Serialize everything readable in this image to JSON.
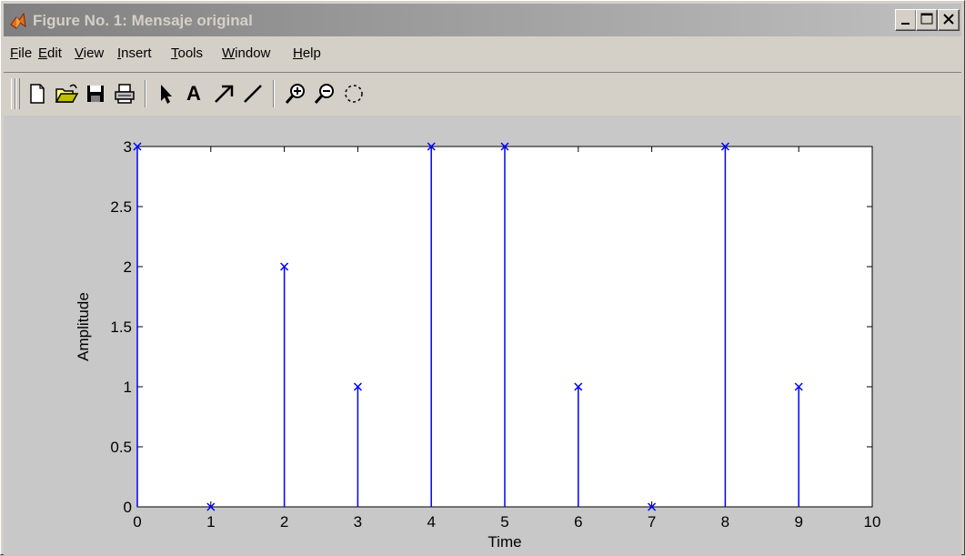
{
  "window": {
    "title": "Figure No. 1: Mensaje original",
    "controls": [
      "minimize",
      "maximize",
      "close"
    ]
  },
  "menubar": {
    "items": [
      {
        "label": "File",
        "underline": "F"
      },
      {
        "label": "Edit",
        "underline": "E"
      },
      {
        "label": "View",
        "underline": "V"
      },
      {
        "label": "Insert",
        "underline": "I"
      },
      {
        "label": "Tools",
        "underline": "T"
      },
      {
        "label": "Window",
        "underline": "W"
      },
      {
        "label": "Help",
        "underline": "H"
      }
    ]
  },
  "toolbar": {
    "tools": [
      {
        "name": "new-figure-icon"
      },
      {
        "name": "open-file-icon"
      },
      {
        "name": "save-icon"
      },
      {
        "name": "print-icon"
      },
      {
        "name": "edit-plot-arrow-icon"
      },
      {
        "name": "insert-text-icon",
        "text": "A"
      },
      {
        "name": "insert-arrow-icon"
      },
      {
        "name": "insert-line-icon"
      },
      {
        "name": "zoom-in-icon"
      },
      {
        "name": "zoom-out-icon"
      },
      {
        "name": "rotate-3d-icon"
      }
    ]
  },
  "colors": {
    "series": "#0000ff",
    "figure_bg": "#c8c8c8",
    "axes_bg": "#ffffff"
  },
  "chart_data": {
    "type": "stem",
    "marker": "x",
    "xlabel": "Time",
    "ylabel": "Amplitude",
    "xlim": [
      0,
      10
    ],
    "ylim": [
      0,
      3
    ],
    "xticks": [
      "0",
      "1",
      "2",
      "3",
      "4",
      "5",
      "6",
      "7",
      "8",
      "9",
      "10"
    ],
    "yticks": [
      "0",
      "0.5",
      "1",
      "1.5",
      "2",
      "2.5",
      "3"
    ],
    "x": [
      0,
      1,
      2,
      3,
      4,
      5,
      6,
      7,
      8,
      9
    ],
    "y": [
      3,
      0,
      2,
      1,
      3,
      3,
      1,
      0,
      3,
      1
    ],
    "grid": false
  }
}
